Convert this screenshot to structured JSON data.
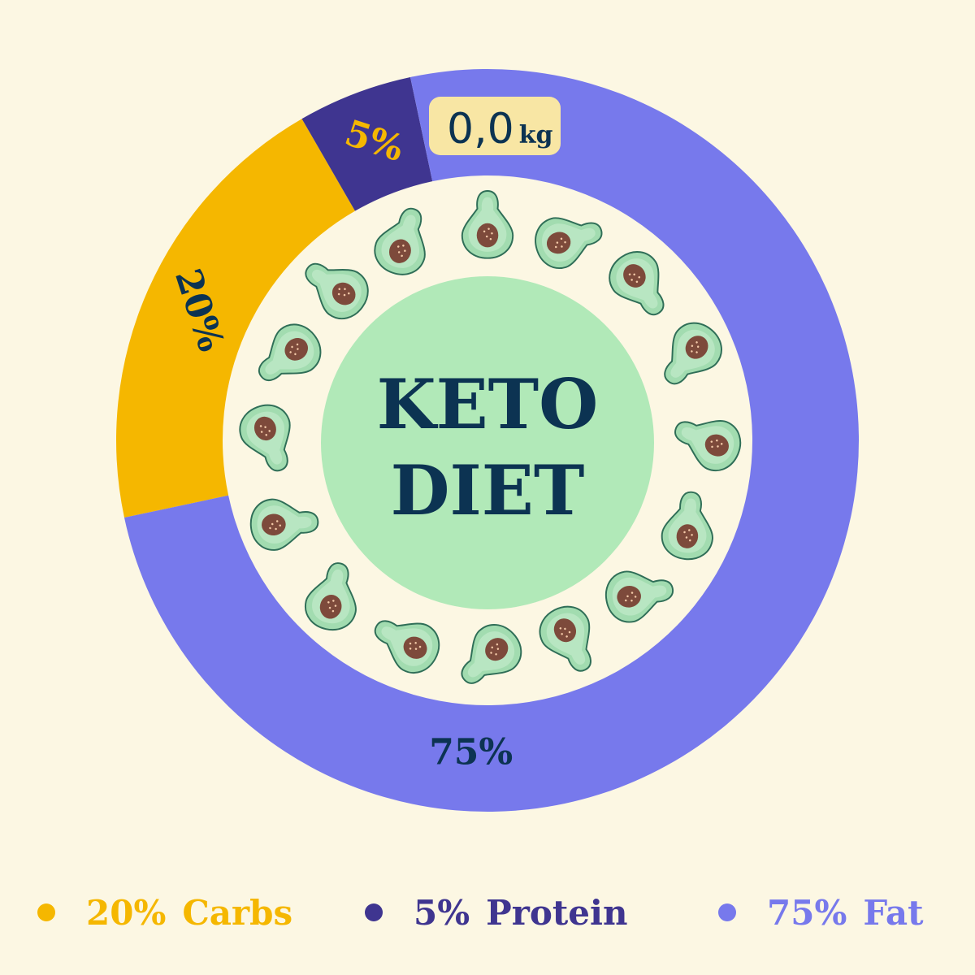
{
  "chart_data": {
    "type": "pie",
    "style": "donut",
    "title": "KETO DIET",
    "title_lines": [
      "KETO",
      "DIET"
    ],
    "categories": [
      "Carbs",
      "Protein",
      "Fat"
    ],
    "values": [
      20,
      5,
      75
    ],
    "labels": [
      "20%",
      "5%",
      "75%"
    ],
    "colors": [
      "#f5b700",
      "#3f3590",
      "#7779ec"
    ],
    "label_colors": [
      "#0c3352",
      "#f5b700",
      "#0c3352"
    ],
    "legend": {
      "placement": "bottom",
      "entries": [
        {
          "pct": "20%",
          "name": "Carbs",
          "color": "#f5b700"
        },
        {
          "pct": "5%",
          "name": "Protein",
          "color": "#3f3590"
        },
        {
          "pct": "75%",
          "name": "Fat",
          "color": "#7779ec"
        }
      ]
    }
  },
  "weight_badge": {
    "value": "0,0",
    "unit": "kg"
  },
  "decoration": {
    "icon": "avocado-icon",
    "count": 16
  }
}
